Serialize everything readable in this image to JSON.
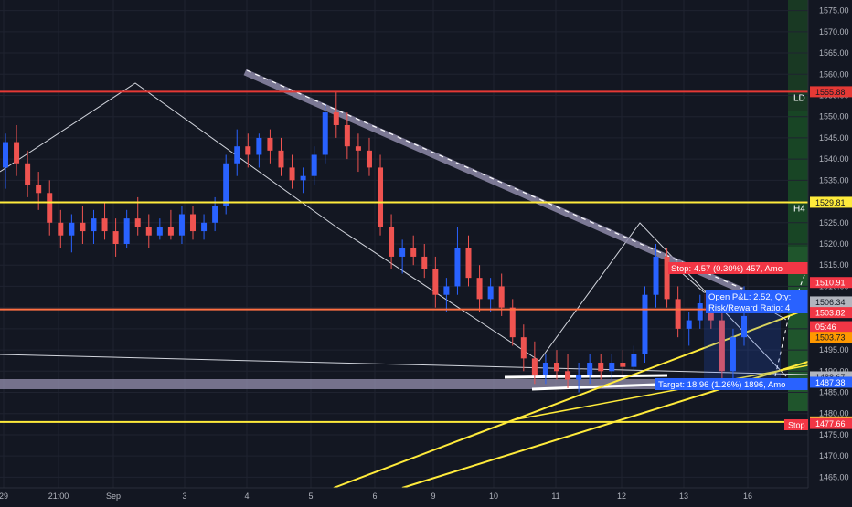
{
  "chart_data": {
    "type": "candlestick",
    "instrument": "XAUUSD",
    "x_tick_labels": [
      "29",
      "21:00",
      "Sep",
      "3",
      "4",
      "5",
      "6",
      "9",
      "10",
      "11",
      "12",
      "13",
      "16"
    ],
    "y_tick_labels": [
      "1575.00",
      "1570.00",
      "1565.00",
      "1560.00",
      "1555.00",
      "1550.00",
      "1545.00",
      "1540.00",
      "1535.00",
      "1530.00",
      "1525.00",
      "1520.00",
      "1515.00",
      "1510.00",
      "1505.00",
      "1500.00",
      "1495.00",
      "1490.00",
      "1485.00",
      "1480.00",
      "1475.00",
      "1470.00",
      "1465.00"
    ],
    "ylim": [
      1462.5,
      1577.5
    ],
    "horizontal_levels": [
      {
        "name": "red-level",
        "value": 1555.88,
        "label": "1555.88",
        "color": "#e53935",
        "tag": "LD"
      },
      {
        "name": "yellow-level-upper",
        "value": 1529.81,
        "label": "1529.81",
        "color": "#ffeb3b",
        "tag": "H4"
      },
      {
        "name": "orange-level",
        "value": 1504.58,
        "label": "1504.58",
        "color": "#ff7043",
        "tag": ""
      },
      {
        "name": "yellow-level-lower",
        "value": 1478.04,
        "label": "1478.04",
        "color": "#ffeb3b",
        "tag": ""
      }
    ],
    "price_tags": [
      {
        "value": 1510.91,
        "label": "1510.91",
        "color": "#f23645"
      },
      {
        "value": 1506.34,
        "label": "1506.34",
        "color": "#b2b5be"
      },
      {
        "value": 1503.82,
        "label": "1503.82",
        "color": "#f23645"
      },
      {
        "value": 1500.5,
        "label": "05:46",
        "color": "#f23645"
      },
      {
        "value": 1498.0,
        "label": "1503.73",
        "color": "#ff9800"
      },
      {
        "value": 1488.67,
        "label": "1488.67",
        "color": "#b2b5be"
      },
      {
        "value": 1487.38,
        "label": "1487.38",
        "color": "#2962ff"
      },
      {
        "value": 1477.66,
        "label": "1477.66",
        "color": "#f23645"
      }
    ],
    "position_labels": {
      "stop": "Stop: 4.57 (0.30%) 457, Amo",
      "open": "Open P&L: 2.52, Qty:",
      "risk": "Risk/Reward Ratio: 4",
      "target": "Target: 18.96 (1.26%) 1896, Amo",
      "stop_tag": "Stop"
    },
    "candles": [
      {
        "o": 1538,
        "h": 1546,
        "l": 1533,
        "c": 1544
      },
      {
        "o": 1544,
        "h": 1548,
        "l": 1536,
        "c": 1539
      },
      {
        "o": 1539,
        "h": 1542,
        "l": 1531,
        "c": 1534
      },
      {
        "o": 1534,
        "h": 1537,
        "l": 1528,
        "c": 1532
      },
      {
        "o": 1532,
        "h": 1535,
        "l": 1522,
        "c": 1525
      },
      {
        "o": 1525,
        "h": 1528,
        "l": 1519,
        "c": 1522
      },
      {
        "o": 1522,
        "h": 1527,
        "l": 1518,
        "c": 1525
      },
      {
        "o": 1525,
        "h": 1529,
        "l": 1520,
        "c": 1523
      },
      {
        "o": 1523,
        "h": 1528,
        "l": 1520,
        "c": 1526
      },
      {
        "o": 1526,
        "h": 1530,
        "l": 1521,
        "c": 1523
      },
      {
        "o": 1523,
        "h": 1526,
        "l": 1517,
        "c": 1520
      },
      {
        "o": 1520,
        "h": 1528,
        "l": 1519,
        "c": 1526
      },
      {
        "o": 1526,
        "h": 1531,
        "l": 1522,
        "c": 1524
      },
      {
        "o": 1524,
        "h": 1527,
        "l": 1519,
        "c": 1522
      },
      {
        "o": 1522,
        "h": 1526,
        "l": 1521,
        "c": 1524
      },
      {
        "o": 1524,
        "h": 1528,
        "l": 1521,
        "c": 1522
      },
      {
        "o": 1522,
        "h": 1529,
        "l": 1520,
        "c": 1527
      },
      {
        "o": 1527,
        "h": 1529,
        "l": 1521,
        "c": 1523
      },
      {
        "o": 1523,
        "h": 1527,
        "l": 1521,
        "c": 1525
      },
      {
        "o": 1525,
        "h": 1531,
        "l": 1523,
        "c": 1529
      },
      {
        "o": 1529,
        "h": 1541,
        "l": 1527,
        "c": 1539
      },
      {
        "o": 1539,
        "h": 1547,
        "l": 1536,
        "c": 1543
      },
      {
        "o": 1543,
        "h": 1546,
        "l": 1538,
        "c": 1541
      },
      {
        "o": 1541,
        "h": 1546,
        "l": 1538,
        "c": 1545
      },
      {
        "o": 1545,
        "h": 1547,
        "l": 1539,
        "c": 1542
      },
      {
        "o": 1542,
        "h": 1545,
        "l": 1536,
        "c": 1538
      },
      {
        "o": 1538,
        "h": 1541,
        "l": 1533,
        "c": 1535
      },
      {
        "o": 1535,
        "h": 1538,
        "l": 1532,
        "c": 1536
      },
      {
        "o": 1536,
        "h": 1543,
        "l": 1534,
        "c": 1541
      },
      {
        "o": 1541,
        "h": 1553,
        "l": 1539,
        "c": 1551
      },
      {
        "o": 1551,
        "h": 1556,
        "l": 1545,
        "c": 1548
      },
      {
        "o": 1548,
        "h": 1551,
        "l": 1540,
        "c": 1543
      },
      {
        "o": 1543,
        "h": 1546,
        "l": 1537,
        "c": 1542
      },
      {
        "o": 1542,
        "h": 1545,
        "l": 1536,
        "c": 1538
      },
      {
        "o": 1538,
        "h": 1541,
        "l": 1522,
        "c": 1524
      },
      {
        "o": 1524,
        "h": 1527,
        "l": 1514,
        "c": 1517
      },
      {
        "o": 1517,
        "h": 1521,
        "l": 1513,
        "c": 1519
      },
      {
        "o": 1519,
        "h": 1522,
        "l": 1515,
        "c": 1517
      },
      {
        "o": 1517,
        "h": 1520,
        "l": 1512,
        "c": 1514
      },
      {
        "o": 1514,
        "h": 1517,
        "l": 1505,
        "c": 1508
      },
      {
        "o": 1508,
        "h": 1512,
        "l": 1504,
        "c": 1510
      },
      {
        "o": 1510,
        "h": 1524,
        "l": 1508,
        "c": 1519
      },
      {
        "o": 1519,
        "h": 1522,
        "l": 1510,
        "c": 1512
      },
      {
        "o": 1512,
        "h": 1515,
        "l": 1504,
        "c": 1507
      },
      {
        "o": 1507,
        "h": 1512,
        "l": 1504,
        "c": 1510
      },
      {
        "o": 1510,
        "h": 1513,
        "l": 1503,
        "c": 1505
      },
      {
        "o": 1505,
        "h": 1507,
        "l": 1496,
        "c": 1498
      },
      {
        "o": 1498,
        "h": 1501,
        "l": 1490,
        "c": 1493
      },
      {
        "o": 1493,
        "h": 1497,
        "l": 1487,
        "c": 1489
      },
      {
        "o": 1489,
        "h": 1494,
        "l": 1487,
        "c": 1492
      },
      {
        "o": 1492,
        "h": 1495,
        "l": 1488,
        "c": 1490
      },
      {
        "o": 1490,
        "h": 1494,
        "l": 1486,
        "c": 1488
      },
      {
        "o": 1488,
        "h": 1492,
        "l": 1485,
        "c": 1489
      },
      {
        "o": 1489,
        "h": 1494,
        "l": 1487,
        "c": 1492
      },
      {
        "o": 1492,
        "h": 1494,
        "l": 1488,
        "c": 1490
      },
      {
        "o": 1490,
        "h": 1494,
        "l": 1488,
        "c": 1492
      },
      {
        "o": 1492,
        "h": 1495,
        "l": 1489,
        "c": 1491
      },
      {
        "o": 1491,
        "h": 1496,
        "l": 1490,
        "c": 1494
      },
      {
        "o": 1494,
        "h": 1510,
        "l": 1492,
        "c": 1508
      },
      {
        "o": 1508,
        "h": 1520,
        "l": 1505,
        "c": 1517
      },
      {
        "o": 1517,
        "h": 1519,
        "l": 1505,
        "c": 1507
      },
      {
        "o": 1507,
        "h": 1510,
        "l": 1498,
        "c": 1500
      },
      {
        "o": 1500,
        "h": 1504,
        "l": 1496,
        "c": 1502
      },
      {
        "o": 1502,
        "h": 1508,
        "l": 1500,
        "c": 1506
      },
      {
        "o": 1506,
        "h": 1509,
        "l": 1500,
        "c": 1502
      },
      {
        "o": 1502,
        "h": 1505,
        "l": 1488,
        "c": 1490
      },
      {
        "o": 1490,
        "h": 1500,
        "l": 1488,
        "c": 1498
      },
      {
        "o": 1498,
        "h": 1510,
        "l": 1496,
        "c": 1503
      }
    ],
    "grid": true
  }
}
